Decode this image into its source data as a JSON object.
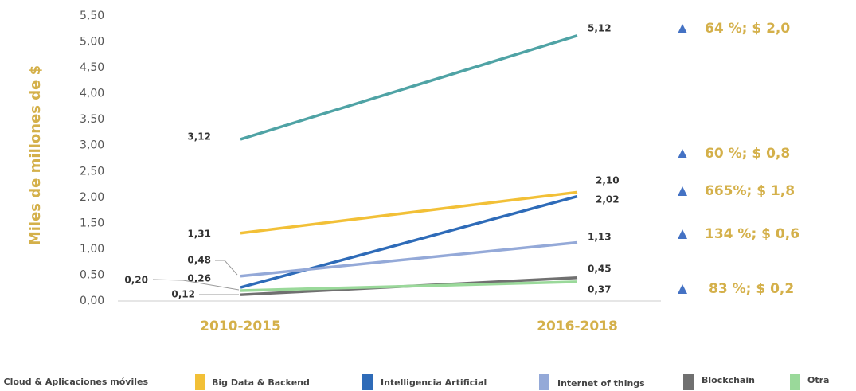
{
  "chart_data": {
    "type": "line",
    "y_label": "Miles de millones de $",
    "categories": [
      "2010-2015",
      "2016-2018"
    ],
    "series": [
      {
        "name": "Cloud & Aplicaciones móviles",
        "color": "#4fa3a5",
        "values": [
          3.12,
          5.12
        ],
        "value_labels": [
          "3,12",
          "5,12"
        ]
      },
      {
        "name": "Big Data & Backend",
        "color": "#f2c037",
        "values": [
          1.31,
          2.1
        ],
        "value_labels": [
          "1,31",
          "2,10"
        ]
      },
      {
        "name": "Intelligencia Artificial",
        "color": "#2e6bb8",
        "values": [
          0.26,
          2.02
        ],
        "value_labels": [
          "0,26",
          "2,02"
        ]
      },
      {
        "name": "Internet of things",
        "color": "#94a9d8",
        "values": [
          0.48,
          1.13
        ],
        "value_labels": [
          "0,48",
          "1,13"
        ]
      },
      {
        "name": "Blockchain",
        "color": "#707070",
        "values": [
          0.12,
          0.45
        ],
        "value_labels": [
          "0,12",
          "0,45"
        ]
      },
      {
        "name": "Otra",
        "color": "#9ad99a",
        "values": [
          0.2,
          0.37
        ],
        "value_labels": [
          "0,20",
          "0,37"
        ]
      }
    ],
    "ylim": [
      0,
      5.5
    ],
    "yticks": [
      {
        "value": 0,
        "label": "0,00"
      },
      {
        "value": 0.5,
        "label": "0.50"
      },
      {
        "value": 1,
        "label": "1,00"
      },
      {
        "value": 1.5,
        "label": "1,50"
      },
      {
        "value": 2,
        "label": "2,00"
      },
      {
        "value": 2.5,
        "label": "2,50"
      },
      {
        "value": 3,
        "label": "3,00"
      },
      {
        "value": 3.5,
        "label": "3,50"
      },
      {
        "value": 4,
        "label": "4,00"
      },
      {
        "value": 4.5,
        "label": "4,50"
      },
      {
        "value": 5,
        "label": "5,00"
      },
      {
        "value": 5.5,
        "label": "5,50"
      }
    ],
    "annotations": [
      "64 %; $ 2,0",
      "60 %; $ 0,8",
      "665%; $ 1,8",
      "134 %; $ 0,6",
      "83 %; $ 0,2"
    ],
    "annotation_color": "#4472c4"
  }
}
